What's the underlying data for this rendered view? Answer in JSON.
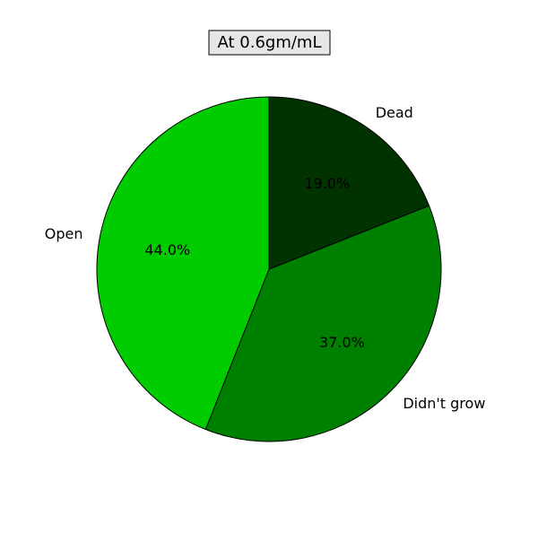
{
  "chart_data": {
    "type": "pie",
    "title": "At 0.6gm/mL",
    "slices": [
      {
        "label": "Dead",
        "value": 19.0,
        "pct_label": "19.0%",
        "color": "#003300"
      },
      {
        "label": "Didn't grow",
        "value": 37.0,
        "pct_label": "37.0%",
        "color": "#008000"
      },
      {
        "label": "Open",
        "value": 44.0,
        "pct_label": "44.0%",
        "color": "#00cc00"
      }
    ],
    "start_angle_deg": 90,
    "direction": "clockwise",
    "edge_color": "#000000",
    "title_box_color": "#e6e6e6"
  }
}
